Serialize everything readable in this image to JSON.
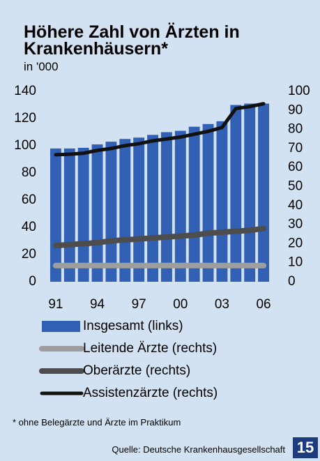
{
  "chart_data": {
    "type": "bar",
    "title": "Höhere Zahl von Ärzten in Krankenhäusern*",
    "subtitle": "in '000",
    "categories": [
      "91",
      null,
      null,
      "94",
      null,
      null,
      "97",
      null,
      null,
      "00",
      null,
      null,
      "03",
      null,
      null,
      "06"
    ],
    "series": [
      {
        "name": "Insgesamt (links)",
        "type": "bar",
        "color": "#3260b4",
        "values": [
          98,
          98,
          98.5,
          101,
          103,
          105,
          106,
          108,
          110,
          111,
          114,
          116,
          118,
          130,
          131,
          131
        ]
      },
      {
        "name": "Leitende Ärzte (rechts)",
        "type": "line",
        "axis": "y2",
        "color": "#9e9e9e",
        "values": [
          8.5,
          8.5,
          8.5,
          8.5,
          8.5,
          8.5,
          8.5,
          8.5,
          8.5,
          8.5,
          8.5,
          8.5,
          8.5,
          8.5,
          8.5,
          8.5
        ]
      },
      {
        "name": "Oberärzte (rechts)",
        "type": "line",
        "axis": "y2",
        "color": "#4d4d4d",
        "values": [
          19,
          19.5,
          20,
          20.5,
          21.5,
          22,
          22.5,
          23,
          23.5,
          24,
          24.5,
          25.5,
          26,
          26.5,
          27,
          28
        ]
      },
      {
        "name": "Assistenzärzte (rechts)",
        "type": "line",
        "axis": "y2",
        "color": "#111111",
        "values": [
          66.7,
          67,
          67.5,
          69,
          70,
          71.5,
          72.5,
          74,
          75,
          76,
          77.5,
          79,
          81,
          91,
          92,
          93.5
        ]
      }
    ],
    "ylim": [
      0,
      140
    ],
    "yticks": [
      0,
      20,
      40,
      60,
      80,
      100,
      120,
      140
    ],
    "y2lim": [
      0,
      100
    ],
    "y2ticks": [
      0,
      10,
      20,
      30,
      40,
      50,
      60,
      70,
      80,
      90,
      100
    ],
    "footnote": "* ohne Belegärzte und Ärzte im Praktikum",
    "source": "Quelle: Deutsche Krankenhausgesellschaft",
    "page_number": "15"
  }
}
